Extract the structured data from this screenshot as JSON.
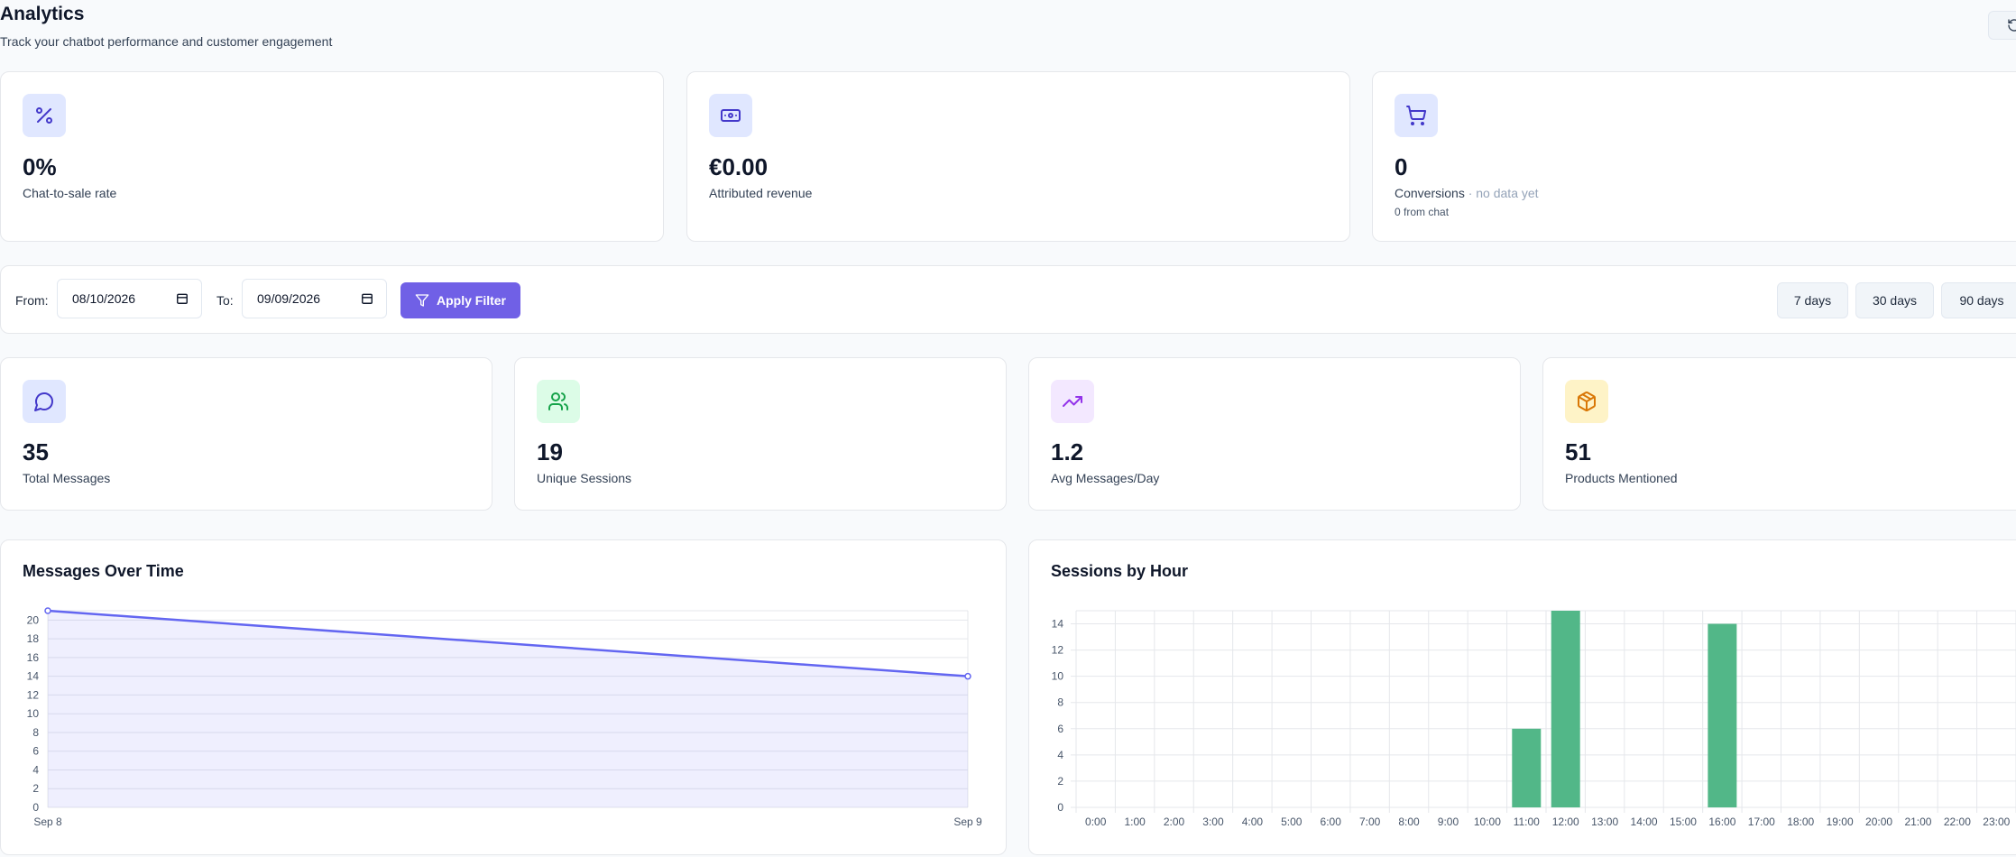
{
  "header": {
    "title": "Analytics",
    "subtitle": "Track your chatbot performance and customer engagement"
  },
  "kpis": [
    {
      "icon": "percent-icon",
      "value": "0%",
      "label": "Chat-to-sale rate"
    },
    {
      "icon": "banknote-icon",
      "value": "€0.00",
      "label": "Attributed revenue"
    },
    {
      "icon": "shopping-cart-icon",
      "value": "0",
      "label": "Conversions",
      "note": " · no data yet",
      "sub": "0 from chat"
    }
  ],
  "filter": {
    "from_label": "From:",
    "from_value": "08/10/2026",
    "to_label": "To:",
    "to_value": "09/09/2026",
    "apply_label": "Apply Filter",
    "ranges": [
      "7 days",
      "30 days",
      "90 days"
    ]
  },
  "stats": [
    {
      "icon": "message-circle-icon",
      "value": "35",
      "label": "Total Messages",
      "color": "#e0e7ff"
    },
    {
      "icon": "users-icon",
      "value": "19",
      "label": "Unique Sessions",
      "color": "#dcfce7"
    },
    {
      "icon": "trending-up-icon",
      "value": "1.2",
      "label": "Avg Messages/Day",
      "color": "#f3e8ff"
    },
    {
      "icon": "package-icon",
      "value": "51",
      "label": "Products Mentioned",
      "color": "#fef3c7"
    }
  ],
  "chart_data": [
    {
      "type": "area",
      "title": "Messages Over Time",
      "categories": [
        "Sep 8",
        "Sep 9"
      ],
      "values": [
        21,
        14
      ],
      "ylim": [
        0,
        21
      ],
      "yticks": [
        0,
        2,
        4,
        6,
        8,
        10,
        12,
        14,
        16,
        18,
        20
      ],
      "color": "#6366f1",
      "grid": true
    },
    {
      "type": "bar",
      "title": "Sessions by Hour",
      "categories": [
        "0:00",
        "1:00",
        "2:00",
        "3:00",
        "4:00",
        "5:00",
        "6:00",
        "7:00",
        "8:00",
        "9:00",
        "10:00",
        "11:00",
        "12:00",
        "13:00",
        "14:00",
        "15:00",
        "16:00",
        "17:00",
        "18:00",
        "19:00",
        "20:00",
        "21:00",
        "22:00",
        "23:00"
      ],
      "values": [
        0,
        0,
        0,
        0,
        0,
        0,
        0,
        0,
        0,
        0,
        0,
        6,
        15,
        0,
        0,
        0,
        14,
        0,
        0,
        0,
        0,
        0,
        0,
        0
      ],
      "ylim": [
        0,
        15
      ],
      "yticks": [
        0,
        2,
        4,
        6,
        8,
        10,
        12,
        14
      ],
      "color": "#52b788",
      "grid": true
    }
  ]
}
